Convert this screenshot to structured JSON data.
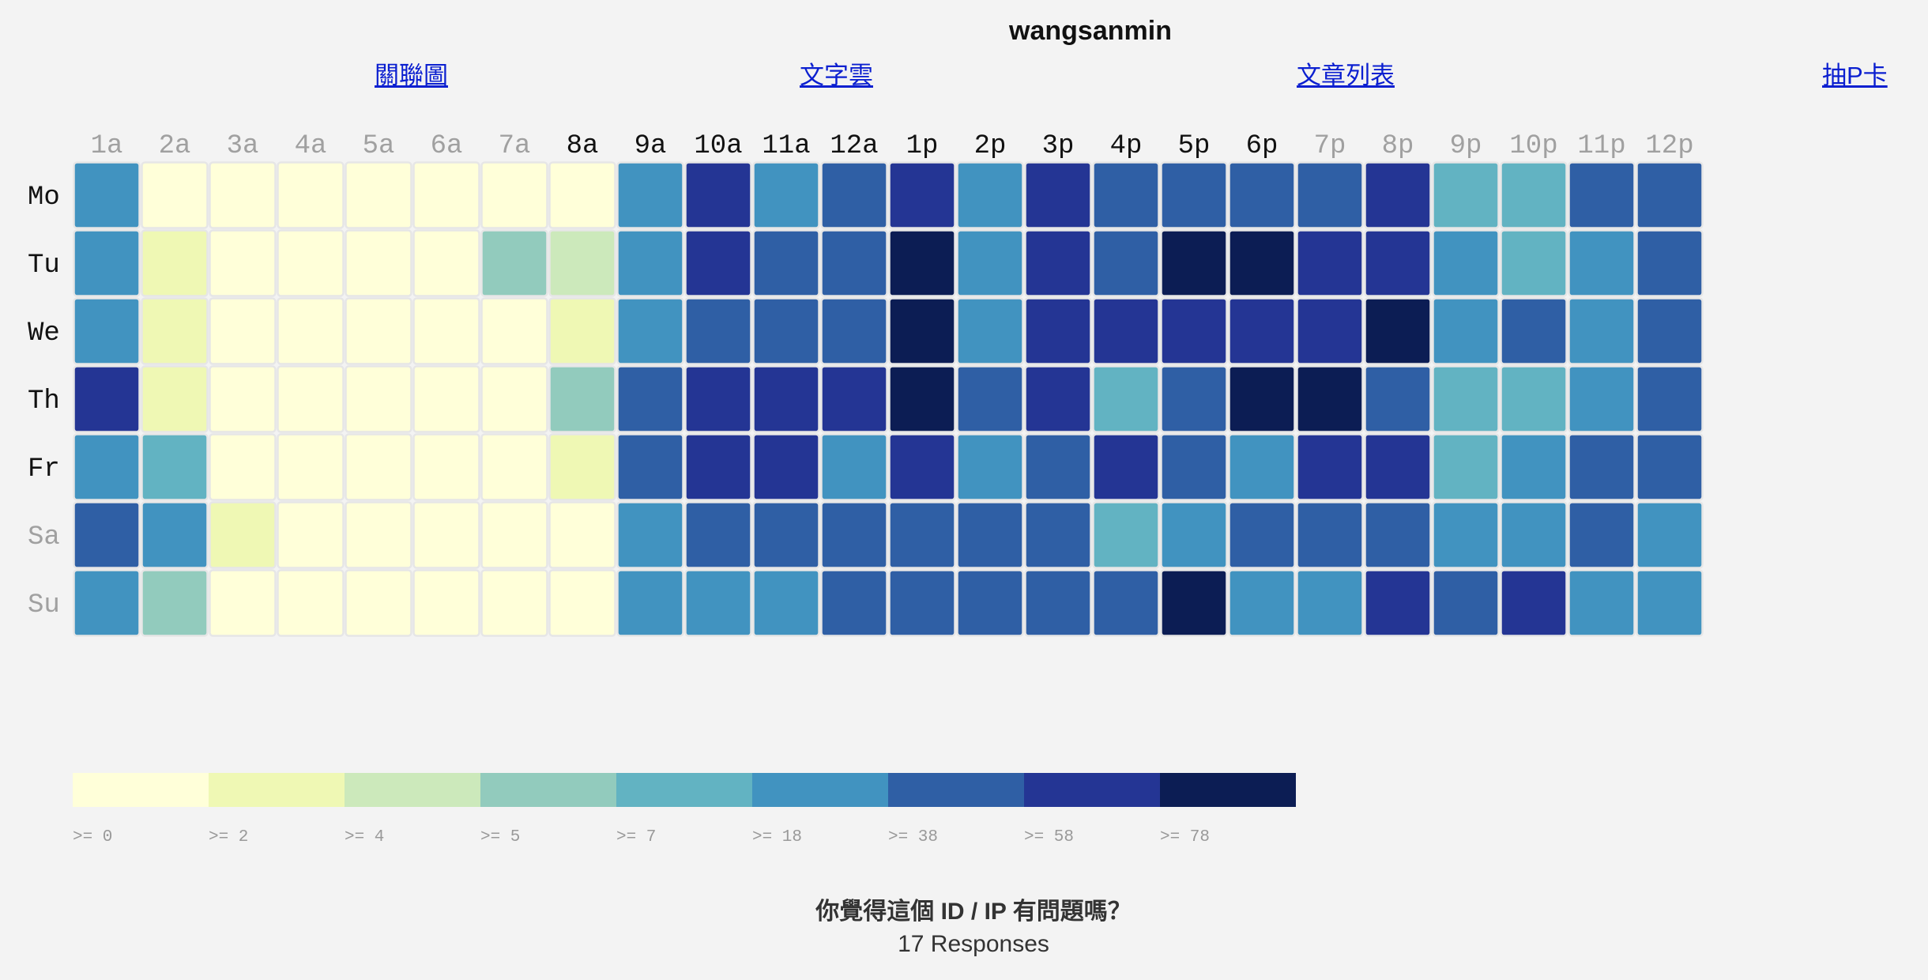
{
  "header": {
    "title": "wangsanmin",
    "nav": [
      {
        "label": "關聯圖"
      },
      {
        "label": "文字雲"
      },
      {
        "label": "文章列表"
      },
      {
        "label": "抽P卡"
      }
    ]
  },
  "survey": {
    "question": "你覺得這個 ID / IP 有問題嗎？",
    "responses": "17 Responses"
  },
  "chart_data": {
    "type": "heatmap",
    "x_labels": [
      "1a",
      "2a",
      "3a",
      "4a",
      "5a",
      "6a",
      "7a",
      "8a",
      "9a",
      "10a",
      "11a",
      "12a",
      "1p",
      "2p",
      "3p",
      "4p",
      "5p",
      "6p",
      "7p",
      "8p",
      "9p",
      "10p",
      "11p",
      "12p"
    ],
    "y_labels": [
      "Mo",
      "Tu",
      "We",
      "Th",
      "Fr",
      "Sa",
      "Su"
    ],
    "x_label_highlight": [
      false,
      false,
      false,
      false,
      false,
      false,
      false,
      true,
      true,
      true,
      true,
      true,
      true,
      true,
      true,
      true,
      true,
      true,
      false,
      false,
      false,
      false,
      false,
      false
    ],
    "y_label_highlight": [
      true,
      true,
      true,
      true,
      true,
      false,
      false
    ],
    "legend": {
      "thresholds": [
        0,
        2,
        4,
        5,
        7,
        18,
        38,
        58,
        78
      ],
      "labels": [
        ">= 0",
        ">= 2",
        ">= 4",
        ">= 5",
        ">= 7",
        ">= 18",
        ">= 38",
        ">= 58",
        ">= 78"
      ],
      "colors": [
        "#ffffd9",
        "#eff8b4",
        "#cce9bb",
        "#92cbbd",
        "#62b3c2",
        "#4193c0",
        "#2f5fa5",
        "#243594",
        "#0c1d54"
      ]
    },
    "bins": [
      [
        5,
        0,
        0,
        0,
        0,
        0,
        0,
        0,
        5,
        7,
        5,
        6,
        7,
        5,
        7,
        6,
        6,
        6,
        6,
        7,
        4,
        4,
        6,
        6
      ],
      [
        5,
        1,
        0,
        0,
        0,
        0,
        3,
        2,
        5,
        7,
        6,
        6,
        8,
        5,
        7,
        6,
        8,
        8,
        7,
        7,
        5,
        4,
        5,
        6
      ],
      [
        5,
        1,
        0,
        0,
        0,
        0,
        0,
        1,
        5,
        6,
        6,
        6,
        8,
        5,
        7,
        7,
        7,
        7,
        7,
        8,
        5,
        6,
        5,
        6
      ],
      [
        7,
        1,
        0,
        0,
        0,
        0,
        0,
        3,
        6,
        7,
        7,
        7,
        8,
        6,
        7,
        4,
        6,
        8,
        8,
        6,
        4,
        4,
        5,
        6
      ],
      [
        5,
        4,
        0,
        0,
        0,
        0,
        0,
        1,
        6,
        7,
        7,
        5,
        7,
        5,
        6,
        7,
        6,
        5,
        7,
        7,
        4,
        5,
        6,
        6
      ],
      [
        6,
        5,
        1,
        0,
        0,
        0,
        0,
        0,
        5,
        6,
        6,
        6,
        6,
        6,
        6,
        4,
        5,
        6,
        6,
        6,
        5,
        5,
        6,
        5
      ],
      [
        5,
        3,
        0,
        0,
        0,
        0,
        0,
        0,
        5,
        5,
        5,
        6,
        6,
        6,
        6,
        6,
        8,
        5,
        5,
        7,
        6,
        7,
        5,
        5
      ]
    ]
  },
  "colors": {
    "background": "#f3f3f3",
    "label_active": "#111111",
    "label_inactive": "#a0a0a0",
    "cell_stroke": "#e6e6e6",
    "link": "#0b1fd0"
  }
}
